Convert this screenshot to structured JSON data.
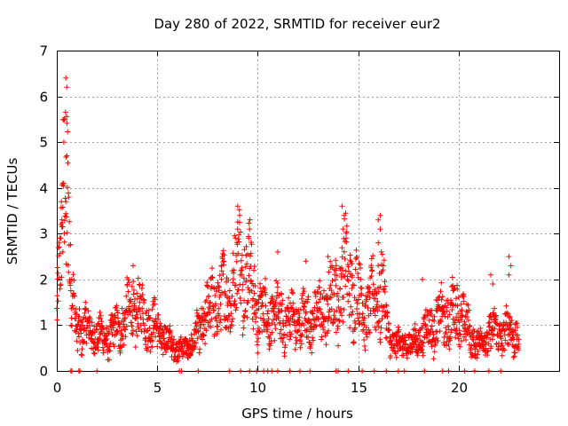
{
  "chart_data": {
    "type": "scatter",
    "title": "Day 280 of 2022, SRMTID for receiver eur2",
    "xlabel": "GPS time / hours",
    "ylabel": "SRMTID / TECUs",
    "xlim": [
      0,
      25
    ],
    "ylim": [
      0,
      7
    ],
    "xticks": [
      0,
      5,
      10,
      15,
      20
    ],
    "yticks": [
      0,
      1,
      2,
      3,
      4,
      5,
      6,
      7
    ],
    "grid": true,
    "marker": "+",
    "color": "#ff0000",
    "x_end_hours": 23,
    "series": [
      {
        "name": "SRMTID",
        "profile": [
          [
            0.0,
            1.2
          ],
          [
            0.2,
            2.4
          ],
          [
            0.35,
            4.0
          ],
          [
            0.5,
            5.3
          ],
          [
            0.65,
            2.2
          ],
          [
            0.9,
            1.0
          ],
          [
            1.5,
            0.9
          ],
          [
            2.5,
            0.7
          ],
          [
            3.2,
            1.0
          ],
          [
            3.8,
            1.4
          ],
          [
            4.3,
            1.2
          ],
          [
            5.0,
            0.9
          ],
          [
            5.6,
            0.6
          ],
          [
            6.2,
            0.45
          ],
          [
            6.8,
            0.6
          ],
          [
            7.3,
            1.1
          ],
          [
            7.8,
            1.5
          ],
          [
            8.3,
            1.6
          ],
          [
            8.8,
            1.8
          ],
          [
            9.1,
            2.4
          ],
          [
            9.5,
            2.2
          ],
          [
            10.0,
            1.3
          ],
          [
            10.8,
            1.2
          ],
          [
            11.5,
            1.1
          ],
          [
            12.5,
            1.1
          ],
          [
            13.3,
            1.3
          ],
          [
            13.8,
            1.6
          ],
          [
            14.3,
            2.1
          ],
          [
            14.8,
            1.8
          ],
          [
            15.4,
            1.3
          ],
          [
            15.9,
            1.6
          ],
          [
            16.2,
            1.9
          ],
          [
            16.5,
            0.7
          ],
          [
            17.2,
            0.55
          ],
          [
            17.8,
            0.6
          ],
          [
            18.4,
            0.9
          ],
          [
            19.0,
            1.1
          ],
          [
            19.6,
            1.2
          ],
          [
            20.1,
            1.3
          ],
          [
            20.6,
            0.7
          ],
          [
            21.2,
            0.6
          ],
          [
            21.6,
            0.9
          ],
          [
            22.0,
            0.8
          ],
          [
            22.5,
            0.9
          ],
          [
            23.0,
            0.7
          ]
        ],
        "spikes": [
          {
            "x": 0.45,
            "y": 6.4
          },
          {
            "x": 0.5,
            "y": 6.2
          },
          {
            "x": 0.4,
            "y": 5.5
          },
          {
            "x": 0.35,
            "y": 5.0
          },
          {
            "x": 0.5,
            "y": 4.7
          },
          {
            "x": 0.3,
            "y": 4.1
          },
          {
            "x": 0.45,
            "y": 3.7
          },
          {
            "x": 0.25,
            "y": 3.3
          },
          {
            "x": 0.2,
            "y": 2.9
          },
          {
            "x": 0.3,
            "y": 2.6
          },
          {
            "x": 3.8,
            "y": 2.3
          },
          {
            "x": 8.2,
            "y": 2.3
          },
          {
            "x": 9.0,
            "y": 3.6
          },
          {
            "x": 9.1,
            "y": 3.4
          },
          {
            "x": 9.0,
            "y": 3.1
          },
          {
            "x": 9.6,
            "y": 3.1
          },
          {
            "x": 9.55,
            "y": 2.9
          },
          {
            "x": 11.0,
            "y": 2.6
          },
          {
            "x": 12.4,
            "y": 2.4
          },
          {
            "x": 13.5,
            "y": 2.5
          },
          {
            "x": 14.2,
            "y": 3.6
          },
          {
            "x": 14.3,
            "y": 3.4
          },
          {
            "x": 14.25,
            "y": 3.1
          },
          {
            "x": 14.4,
            "y": 2.9
          },
          {
            "x": 16.1,
            "y": 3.4
          },
          {
            "x": 16.0,
            "y": 3.3
          },
          {
            "x": 16.1,
            "y": 3.1
          },
          {
            "x": 16.0,
            "y": 2.8
          },
          {
            "x": 16.15,
            "y": 2.6
          },
          {
            "x": 18.2,
            "y": 2.0
          },
          {
            "x": 21.6,
            "y": 2.1
          },
          {
            "x": 21.7,
            "y": 1.9
          },
          {
            "x": 22.5,
            "y": 2.5
          },
          {
            "x": 22.6,
            "y": 2.3
          },
          {
            "x": 22.5,
            "y": 2.1
          },
          {
            "x": 13.9,
            "y": 2.3
          }
        ],
        "zeros": [
          0.7,
          0.75,
          1.1,
          1.15,
          2.0,
          6.1,
          6.2,
          7.05,
          8.6,
          9.15,
          9.6,
          9.95,
          10.3,
          10.5,
          10.7,
          11.0,
          11.6,
          12.1,
          12.6,
          13.9,
          14.0,
          14.5,
          15.2,
          15.8,
          16.4,
          17.0,
          17.3,
          18.3,
          19.2,
          19.5,
          20.3,
          20.8,
          21.5,
          22.1
        ]
      }
    ]
  }
}
